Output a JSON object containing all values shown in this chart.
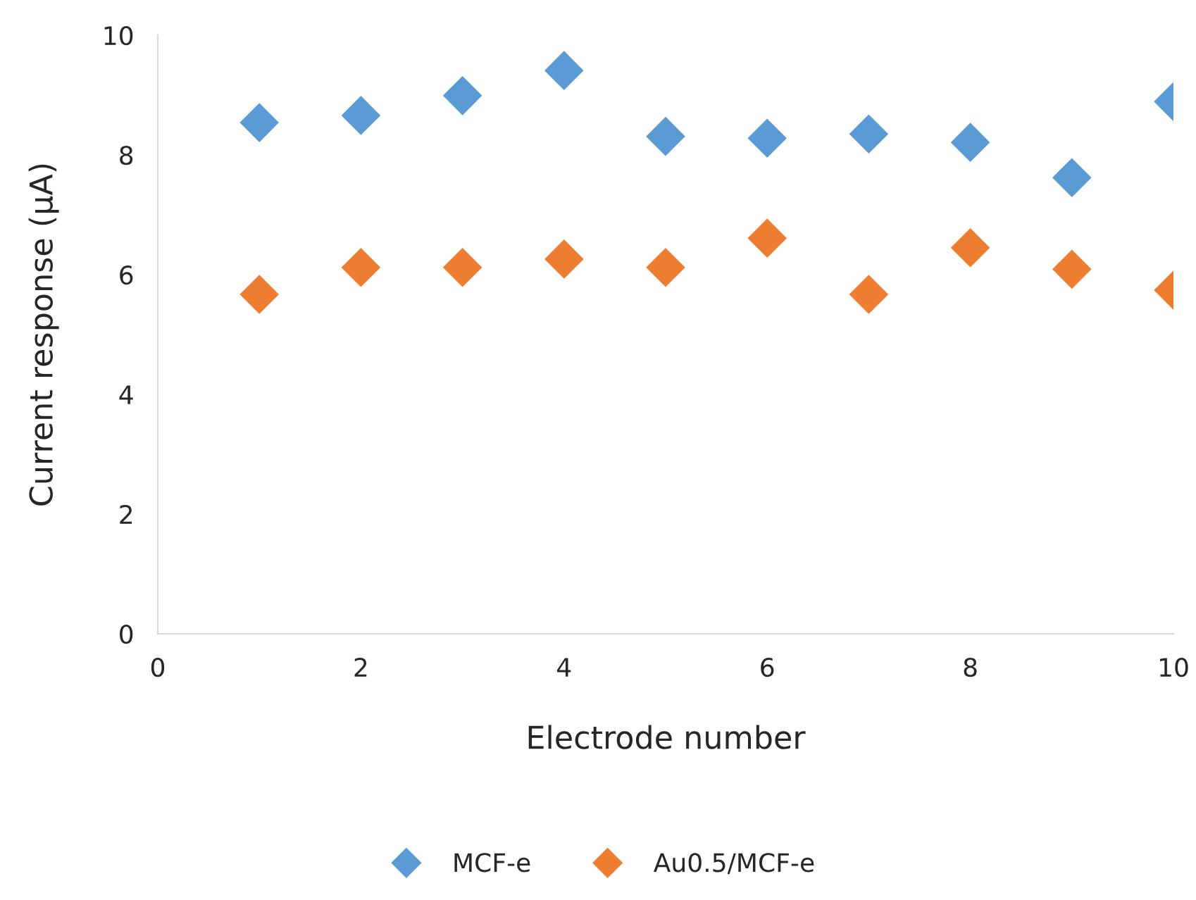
{
  "chart_data": {
    "type": "scatter",
    "xlabel": "Electrode number",
    "ylabel": "Current response (μA)",
    "x": [
      1,
      2,
      3,
      4,
      5,
      6,
      7,
      8,
      9,
      10
    ],
    "series": [
      {
        "name": "MCF-e",
        "color": "#5b9bd5",
        "values": [
          8.54,
          8.66,
          8.99,
          9.41,
          8.31,
          8.28,
          8.35,
          8.21,
          7.62,
          8.89
        ]
      },
      {
        "name": "Au0.5/MCF-e",
        "color": "#ed7d31",
        "values": [
          5.67,
          6.12,
          6.12,
          6.26,
          6.12,
          6.61,
          5.67,
          6.45,
          6.09,
          5.74
        ]
      }
    ],
    "xlim": [
      0,
      10
    ],
    "ylim": [
      0,
      10
    ],
    "xticks": [
      0,
      2,
      4,
      6,
      8,
      10
    ],
    "yticks": [
      0,
      2,
      4,
      6,
      8,
      10
    ],
    "marker": "diamond",
    "grid": false,
    "legend": "bottom"
  }
}
